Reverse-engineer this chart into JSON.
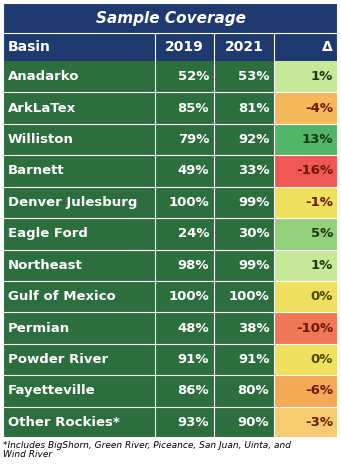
{
  "title": "Sample Coverage",
  "header": [
    "Basin",
    "2019",
    "2021",
    "Δ"
  ],
  "rows": [
    {
      "basin": "Anadarko",
      "y2019": "52%",
      "y2021": "53%",
      "delta": "1%",
      "delta_val": 1
    },
    {
      "basin": "ArkLaTex",
      "y2019": "85%",
      "y2021": "81%",
      "delta": "-4%",
      "delta_val": -4
    },
    {
      "basin": "Williston",
      "y2019": "79%",
      "y2021": "92%",
      "delta": "13%",
      "delta_val": 13
    },
    {
      "basin": "Barnett",
      "y2019": "49%",
      "y2021": "33%",
      "delta": "-16%",
      "delta_val": -16
    },
    {
      "basin": "Denver Julesburg",
      "y2019": "100%",
      "y2021": "99%",
      "delta": "-1%",
      "delta_val": -1
    },
    {
      "basin": "Eagle Ford",
      "y2019": "24%",
      "y2021": "30%",
      "delta": "5%",
      "delta_val": 5
    },
    {
      "basin": "Northeast",
      "y2019": "98%",
      "y2021": "99%",
      "delta": "1%",
      "delta_val": 1
    },
    {
      "basin": "Gulf of Mexico",
      "y2019": "100%",
      "y2021": "100%",
      "delta": "0%",
      "delta_val": 0
    },
    {
      "basin": "Permian",
      "y2019": "48%",
      "y2021": "38%",
      "delta": "-10%",
      "delta_val": -10
    },
    {
      "basin": "Powder River",
      "y2019": "91%",
      "y2021": "91%",
      "delta": "0%",
      "delta_val": 0
    },
    {
      "basin": "Fayetteville",
      "y2019": "86%",
      "y2021": "80%",
      "delta": "-6%",
      "delta_val": -6
    },
    {
      "basin": "Other Rockies*",
      "y2019": "93%",
      "y2021": "90%",
      "delta": "-3%",
      "delta_val": -3
    }
  ],
  "footnote_line1": "*Includes BigShorn, Green River, Piceance, San Juan, Uinta, and",
  "footnote_line2": "Wind River",
  "header_bg": "#1e3a6e",
  "title_bg": "#1e3a6e",
  "row_bg": "#2d6e3e",
  "text_white": "#ffffff",
  "border_color": "#ffffff",
  "title_fontsize": 11,
  "header_fontsize": 10,
  "cell_fontsize": 9.5,
  "footnote_fontsize": 6.5,
  "fig_w": 3.41,
  "fig_h": 4.71,
  "dpi": 100
}
